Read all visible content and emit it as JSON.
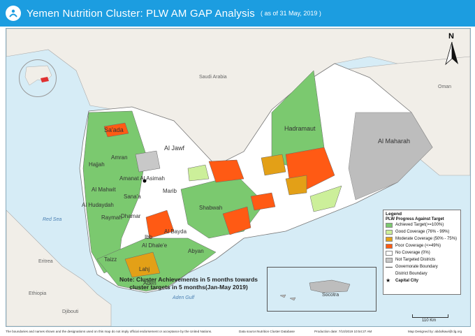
{
  "header": {
    "title": "Yemen Nutrition Cluster: PLW AM GAP Analysis",
    "subtitle": "( as of 31 May, 2019 )",
    "bg_color": "#1c9de0",
    "logo_icon": "cluster-logo-icon"
  },
  "map": {
    "labels": {
      "saudi_arabia": "Saudi Arabia",
      "oman": "Oman",
      "eritrea": "Eritrea",
      "ethiopia": "Ethiopia",
      "djibouti": "Djibouti",
      "red_sea": "Red Sea",
      "aden_gulf": "Aden Gulf",
      "saada": "Sa'ada",
      "al_jawf": "Al Jawf",
      "hadramaut": "Hadramaut",
      "al_maharah": "Al Maharah",
      "amran": "Amran",
      "hajjah": "Hajjah",
      "amanat_al_asimah": "Amanat Al Asimah",
      "al_mahwit": "Al Mahwit",
      "sanaa": "Sana'a",
      "al_hudaydah": "Al Hudaydah",
      "marib": "Marib",
      "shabwah": "Shabwah",
      "raymah": "Raymah",
      "dhamar": "Dhamar",
      "al_bayda": "Al Bayda",
      "ibb": "Ibb",
      "al_dhale": "Al Dhale'e",
      "abyan": "Abyan",
      "taizz": "Taizz",
      "lahj": "Lahj",
      "aden": "Aden",
      "socotra": "Socotra"
    },
    "north_arrow_label": "N",
    "scale_label": "110 Km"
  },
  "note": {
    "line1": "Note: Cluster Achievements in 5  months towards",
    "line2": "cluster targets in 5 months(Jan-May 2019)"
  },
  "legend": {
    "title": "Legend",
    "subtitle": "PLW Progress Against Target",
    "items": [
      {
        "label": "Achieved Target(>=100%)",
        "color": "#7bc96f"
      },
      {
        "label": "Good Coverage (76% - 99%)",
        "color": "#ccef9a"
      },
      {
        "label": "Moderate Coverage (50% - 75%)",
        "color": "#e3a017"
      },
      {
        "label": "Poor Coverage (<=49%)",
        "color": "#ff5a14"
      },
      {
        "label": "No Coverage (0%)",
        "color": "#ffffff"
      },
      {
        "label": "Not Targeted Districts",
        "color": "#c8c8c8"
      }
    ],
    "lines": [
      {
        "label": "Governorate Boundary"
      },
      {
        "label": "District Boundary"
      }
    ],
    "capital": "Capital City"
  },
  "footer": {
    "disclaimer": "The boundaries and names shown and the designations used on this map do not imply official endorsement or acceptance by the United Nations.",
    "source": "Data source:Nutrition Cluster Database",
    "production": "Production date: 7/10/2019 10:54:27 AM",
    "designer": "Map Designed by: abdulkawi@clg.org"
  }
}
